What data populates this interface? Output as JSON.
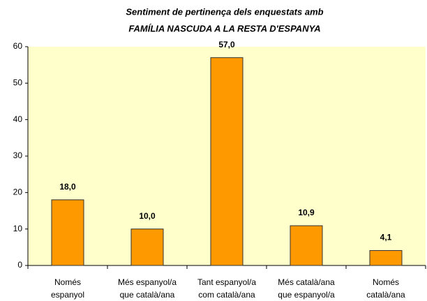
{
  "chart_data": {
    "type": "bar",
    "title": "Sentiment de pertinença dels enquestats amb",
    "subtitle": "FAMÍLIA NASCUDA A LA RESTA D'ESPANYA",
    "categories": [
      [
        "Només",
        "espanyol"
      ],
      [
        "Més espanyol/a",
        "que català/ana"
      ],
      [
        "Tant espanyol/a",
        "com català/ana"
      ],
      [
        "Més català/ana",
        "que espanyol/a"
      ],
      [
        "Només",
        "català/ana"
      ]
    ],
    "values": [
      18.0,
      10.0,
      57.0,
      10.9,
      4.1
    ],
    "value_labels": [
      "18,0",
      "10,0",
      "57,0",
      "10,9",
      "4,1"
    ],
    "color": "#ff9900",
    "background": "#ffffcc",
    "ylim": [
      0,
      60
    ],
    "yticks": [
      0,
      10,
      20,
      30,
      40,
      50,
      60
    ],
    "grid": false
  }
}
